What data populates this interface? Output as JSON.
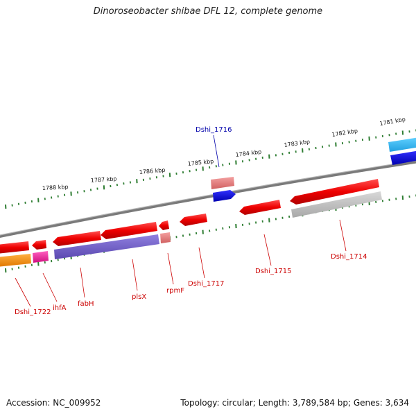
{
  "title": "Dinoroseobacter shibae DFL 12, complete genome",
  "footer": {
    "accession": "Accession: NC_009952",
    "summary": "Topology: circular; Length: 3,789,584 bp; Genes: 3,634"
  },
  "colors": {
    "backbone": "#888888",
    "ticks": "#2e7d32",
    "label_red": "#cc0000",
    "label_blue": "#0000aa"
  },
  "ticks_outer": [
    "1788 kbp",
    "1787 kbp",
    "1786 kbp",
    "1785 kbp",
    "1784 kbp",
    "1783 kbp",
    "1782 kbp",
    "1781 kbp"
  ],
  "gene_labels": [
    {
      "name": "Dshi_1716",
      "color": "blue"
    },
    {
      "name": "Dshi_1715",
      "color": "red"
    },
    {
      "name": "Dshi_1714",
      "color": "red"
    },
    {
      "name": "Dshi_1717",
      "color": "red"
    },
    {
      "name": "rpmF",
      "color": "red"
    },
    {
      "name": "plsX",
      "color": "red"
    },
    {
      "name": "fabH",
      "color": "red"
    },
    {
      "name": "ihfA",
      "color": "red"
    },
    {
      "name": "Dshi_1722",
      "color": "red"
    }
  ]
}
